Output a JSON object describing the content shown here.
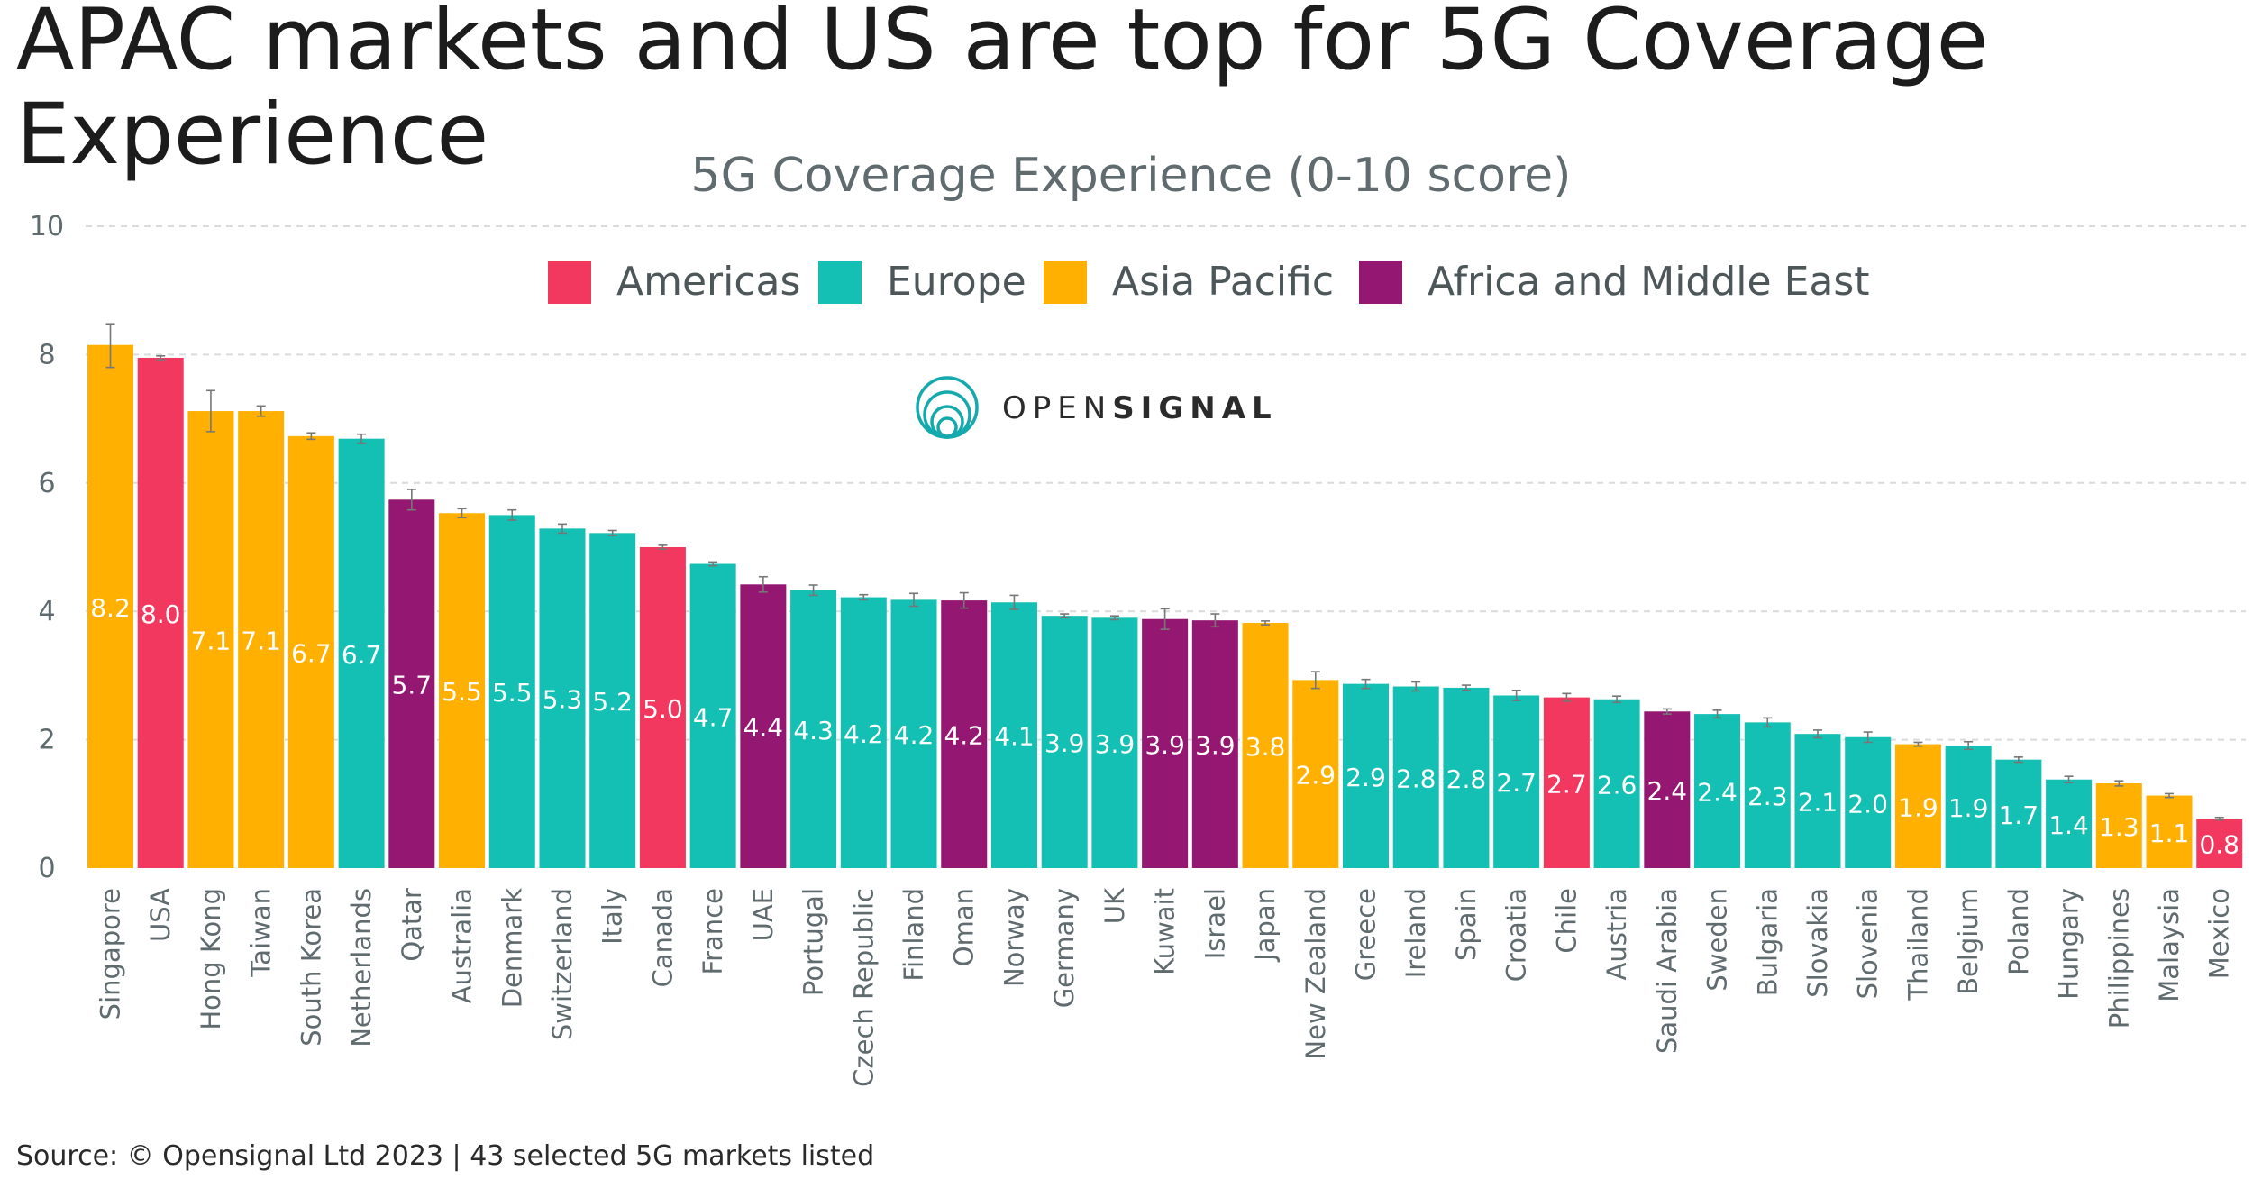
{
  "headline": "APAC markets and US are top for 5G Coverage Experience",
  "source": "Source: © Opensignal Ltd 2023 | 43 selected 5G markets listed",
  "logo_text": {
    "light": "OPEN",
    "bold": "SIGNAL"
  },
  "colors": {
    "Americas": "#f2385f",
    "Europe": "#14bfb4",
    "Asia Pacific": "#ffb000",
    "Africa and Middle East": "#941772"
  },
  "chart_data": {
    "type": "bar",
    "title": "5G Coverage Experience (0-10 score)",
    "ylim": [
      0,
      10
    ],
    "yticks": [
      0,
      2,
      4,
      6,
      8,
      10
    ],
    "grid": true,
    "legend": {
      "position": "top-center",
      "entries": [
        "Americas",
        "Europe",
        "Asia Pacific",
        "Africa and Middle East"
      ]
    },
    "categories": [
      "Singapore",
      "USA",
      "Hong Kong",
      "Taiwan",
      "South Korea",
      "Netherlands",
      "Qatar",
      "Australia",
      "Denmark",
      "Switzerland",
      "Italy",
      "Canada",
      "France",
      "UAE",
      "Portugal",
      "Czech Republic",
      "Finland",
      "Oman",
      "Norway",
      "Germany",
      "UK",
      "Kuwait",
      "Israel",
      "Japan",
      "New Zealand",
      "Greece",
      "Ireland",
      "Spain",
      "Croatia",
      "Chile",
      "Austria",
      "Saudi Arabia",
      "Sweden",
      "Bulgaria",
      "Slovakia",
      "Slovenia",
      "Thailand",
      "Belgium",
      "Poland",
      "Hungary",
      "Philippines",
      "Malaysia",
      "Mexico"
    ],
    "values": [
      8.15,
      7.95,
      7.12,
      7.12,
      6.73,
      6.69,
      5.74,
      5.53,
      5.5,
      5.29,
      5.22,
      5.0,
      4.74,
      4.42,
      4.33,
      4.22,
      4.18,
      4.17,
      4.14,
      3.93,
      3.9,
      3.88,
      3.86,
      3.82,
      2.93,
      2.87,
      2.83,
      2.81,
      2.69,
      2.66,
      2.63,
      2.44,
      2.4,
      2.27,
      2.09,
      2.04,
      1.93,
      1.91,
      1.69,
      1.38,
      1.32,
      1.13,
      0.77
    ],
    "labels": [
      "8.2",
      "8.0",
      "7.1",
      "7.1",
      "6.7",
      "6.7",
      "5.7",
      "5.5",
      "5.5",
      "5.3",
      "5.2",
      "5.0",
      "4.7",
      "4.4",
      "4.3",
      "4.2",
      "4.2",
      "4.2",
      "4.1",
      "3.9",
      "3.9",
      "3.9",
      "3.9",
      "3.8",
      "2.9",
      "2.9",
      "2.8",
      "2.8",
      "2.7",
      "2.7",
      "2.6",
      "2.4",
      "2.4",
      "2.3",
      "2.1",
      "2.0",
      "1.9",
      "1.9",
      "1.7",
      "1.4",
      "1.3",
      "1.1",
      "0.8"
    ],
    "regions": [
      "Asia Pacific",
      "Americas",
      "Asia Pacific",
      "Asia Pacific",
      "Asia Pacific",
      "Europe",
      "Africa and Middle East",
      "Asia Pacific",
      "Europe",
      "Europe",
      "Europe",
      "Americas",
      "Europe",
      "Africa and Middle East",
      "Europe",
      "Europe",
      "Europe",
      "Africa and Middle East",
      "Europe",
      "Europe",
      "Europe",
      "Africa and Middle East",
      "Africa and Middle East",
      "Asia Pacific",
      "Asia Pacific",
      "Europe",
      "Europe",
      "Europe",
      "Europe",
      "Americas",
      "Europe",
      "Africa and Middle East",
      "Europe",
      "Europe",
      "Europe",
      "Europe",
      "Asia Pacific",
      "Europe",
      "Europe",
      "Europe",
      "Asia Pacific",
      "Asia Pacific",
      "Americas"
    ],
    "error_low": [
      7.8,
      7.92,
      6.8,
      7.04,
      6.68,
      6.62,
      5.58,
      5.46,
      5.42,
      5.22,
      5.18,
      4.97,
      4.71,
      4.3,
      4.25,
      4.18,
      4.08,
      4.05,
      4.03,
      3.9,
      3.87,
      3.72,
      3.76,
      3.79,
      2.8,
      2.8,
      2.76,
      2.77,
      2.61,
      2.6,
      2.58,
      2.4,
      2.34,
      2.2,
      2.03,
      1.96,
      1.9,
      1.85,
      1.65,
      1.33,
      1.28,
      1.1,
      0.75
    ],
    "error_high": [
      8.48,
      7.98,
      7.44,
      7.2,
      6.78,
      6.76,
      5.9,
      5.6,
      5.58,
      5.36,
      5.26,
      5.03,
      4.77,
      4.54,
      4.41,
      4.26,
      4.28,
      4.29,
      4.25,
      3.96,
      3.93,
      4.04,
      3.96,
      3.85,
      3.06,
      2.94,
      2.9,
      2.85,
      2.77,
      2.72,
      2.68,
      2.48,
      2.46,
      2.34,
      2.15,
      2.12,
      1.96,
      1.97,
      1.73,
      1.43,
      1.36,
      1.16,
      0.79
    ]
  }
}
